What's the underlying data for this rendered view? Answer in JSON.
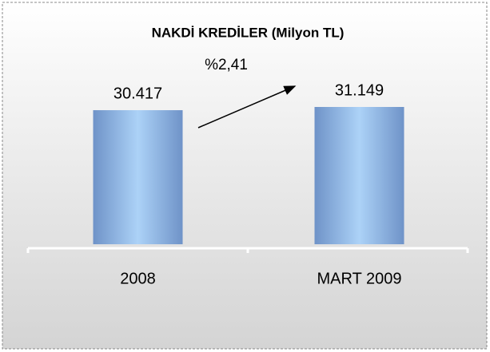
{
  "chart_data": {
    "type": "bar",
    "title": "NAKDİ KREDİLER (Milyon TL)",
    "categories": [
      "2008",
      "MART 2009"
    ],
    "values": [
      30417,
      31149
    ],
    "value_labels": [
      "30.417",
      "31.149"
    ],
    "annotation": "%2,41",
    "color": "#7fa6dc"
  }
}
